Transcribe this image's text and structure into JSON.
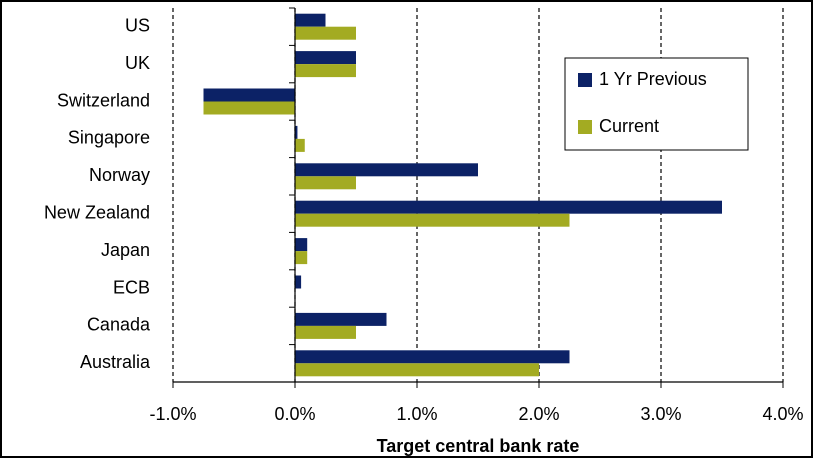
{
  "chart_data": {
    "type": "hbar",
    "x_label": "Target central bank rate",
    "categories": [
      "US",
      "UK",
      "Switzerland",
      "Singapore",
      "Norway",
      "New Zealand",
      "Japan",
      "ECB",
      "Canada",
      "Australia"
    ],
    "series": [
      {
        "name": "1 Yr Previous",
        "color": "#0c2266",
        "values": [
          0.25,
          0.5,
          -0.75,
          0.02,
          1.5,
          3.5,
          0.1,
          0.05,
          0.75,
          2.25
        ]
      },
      {
        "name": "Current",
        "color": "#a3ab22",
        "values": [
          0.5,
          0.5,
          -0.75,
          0.08,
          0.5,
          2.25,
          0.1,
          0,
          0.5,
          2.0
        ]
      }
    ],
    "xlim": [
      -1,
      4
    ],
    "xticks": [
      {
        "value": -1,
        "label": "-1.0%"
      },
      {
        "value": 0,
        "label": "0.0%"
      },
      {
        "value": 1,
        "label": "1.0%"
      },
      {
        "value": 2,
        "label": "2.0%"
      },
      {
        "value": 3,
        "label": "3.0%"
      },
      {
        "value": 4,
        "label": "4.0%"
      }
    ],
    "grid": true,
    "legend": "upper right"
  }
}
